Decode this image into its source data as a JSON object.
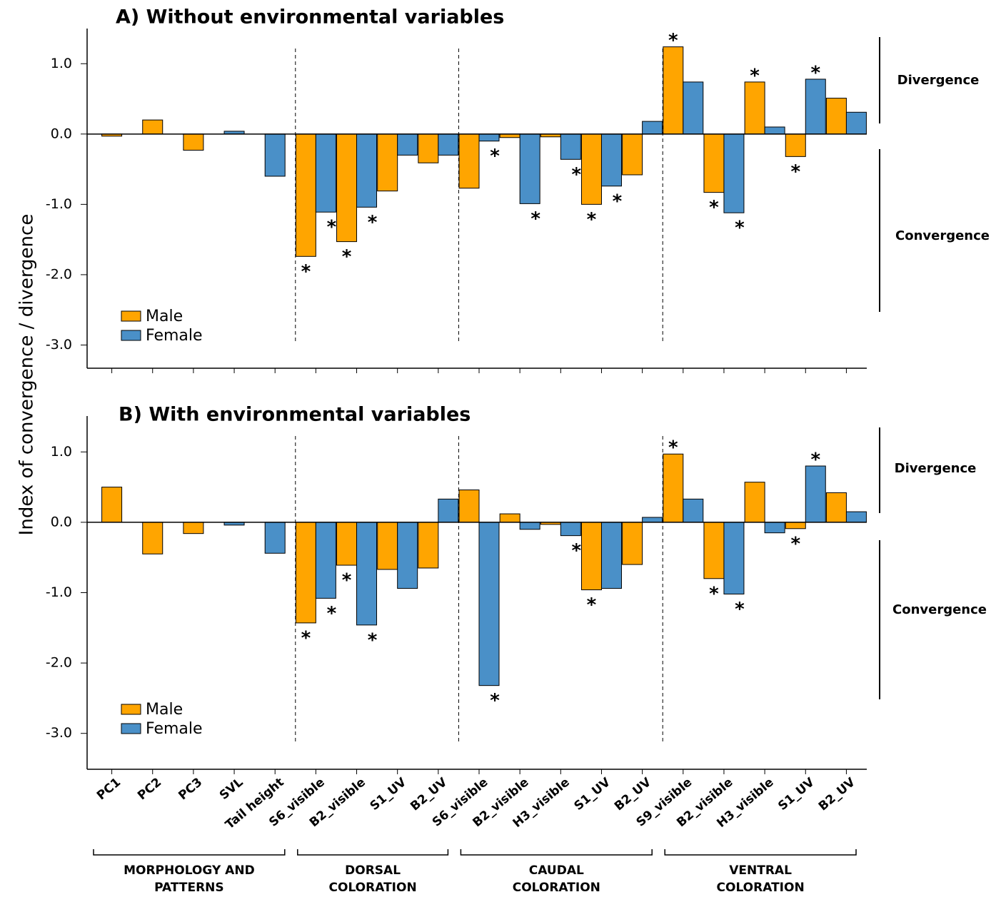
{
  "chart_data": {
    "type": "bar",
    "ylabel": "Index of convergence / divergence",
    "groups": [
      {
        "label": [
          "MORPHOLOGY AND",
          "PATTERNS"
        ],
        "categories": [
          "PC1",
          "PC2",
          "PC3",
          "SVL",
          "Tail height"
        ]
      },
      {
        "label": [
          "DORSAL",
          "COLORATION"
        ],
        "categories": [
          "S6_visible",
          "B2_visible",
          "S1_UV",
          "B2_UV"
        ]
      },
      {
        "label": [
          "CAUDAL",
          "COLORATION"
        ],
        "categories": [
          "S6_visible",
          "B2_visible",
          "H3_visible",
          "S1_UV",
          "B2_UV"
        ]
      },
      {
        "label": [
          "VENTRAL",
          "COLORATION"
        ],
        "categories": [
          "S9_visible",
          "B2_visible",
          "H3_visible",
          "S1_UV",
          "B2_UV"
        ]
      }
    ],
    "panels": [
      {
        "title": "A) Without environmental variables",
        "ylim": [
          -3.33,
          1.5
        ],
        "yticks": [
          {
            "value": 1,
            "label": "1.0"
          },
          {
            "value": 0,
            "label": "0.0"
          },
          {
            "value": -1,
            "label": "-1.0"
          },
          {
            "value": -2,
            "label": "-2.0"
          },
          {
            "value": -3,
            "label": "-3.0"
          }
        ],
        "side_labels": [
          "Divergence",
          "Convergence"
        ],
        "series": [
          {
            "name": "Male",
            "color": "#ffa500",
            "values": [
              -0.03,
              0.2,
              -0.23,
              null,
              null,
              -1.74,
              -1.53,
              -0.81,
              -0.41,
              -0.77,
              -0.05,
              -0.04,
              -1.0,
              -0.58,
              1.24,
              -0.83,
              0.74,
              -0.32,
              0.51
            ],
            "stars": [
              null,
              null,
              null,
              null,
              null,
              "*",
              "*",
              null,
              null,
              null,
              null,
              null,
              "*",
              null,
              "*",
              "*",
              "*",
              "*",
              null
            ]
          },
          {
            "name": "Female",
            "color": "#4a90c8",
            "values": [
              null,
              null,
              null,
              0.04,
              -0.6,
              -1.11,
              -1.04,
              -0.3,
              -0.3,
              -0.1,
              -0.99,
              -0.36,
              -0.74,
              0.18,
              0.74,
              -1.12,
              0.1,
              0.78,
              0.31
            ],
            "stars": [
              null,
              null,
              null,
              null,
              null,
              "*",
              "*",
              null,
              null,
              "*",
              "*",
              "*",
              "*",
              null,
              null,
              "*",
              null,
              "*",
              null
            ]
          }
        ]
      },
      {
        "title": "B) With environmental variables",
        "ylim": [
          -3.51,
          1.51
        ],
        "yticks": [
          {
            "value": 1,
            "label": "1.0"
          },
          {
            "value": 0,
            "label": "0.0"
          },
          {
            "value": -1,
            "label": "-1.0"
          },
          {
            "value": -2,
            "label": "-2.0"
          },
          {
            "value": -3,
            "label": "-3.0"
          }
        ],
        "side_labels": [
          "Divergence",
          "Convergence"
        ],
        "series": [
          {
            "name": "Male",
            "color": "#ffa500",
            "values": [
              0.5,
              -0.45,
              -0.16,
              null,
              null,
              -1.43,
              -0.61,
              -0.67,
              -0.65,
              0.46,
              0.12,
              -0.03,
              -0.96,
              -0.6,
              0.97,
              -0.8,
              0.57,
              -0.09,
              0.42
            ],
            "stars": [
              null,
              null,
              null,
              null,
              null,
              "*",
              "*",
              null,
              null,
              null,
              null,
              null,
              "*",
              null,
              "*",
              "*",
              null,
              "*",
              null
            ]
          },
          {
            "name": "Female",
            "color": "#4a90c8",
            "values": [
              null,
              null,
              null,
              -0.04,
              -0.44,
              -1.08,
              -1.46,
              -0.94,
              0.33,
              -2.32,
              -0.1,
              -0.19,
              -0.94,
              0.07,
              0.33,
              -1.02,
              -0.15,
              0.8,
              0.15
            ],
            "stars": [
              null,
              null,
              null,
              null,
              null,
              "*",
              "*",
              null,
              null,
              "*",
              null,
              "*",
              null,
              null,
              null,
              "*",
              null,
              "*",
              null
            ]
          }
        ]
      }
    ]
  }
}
